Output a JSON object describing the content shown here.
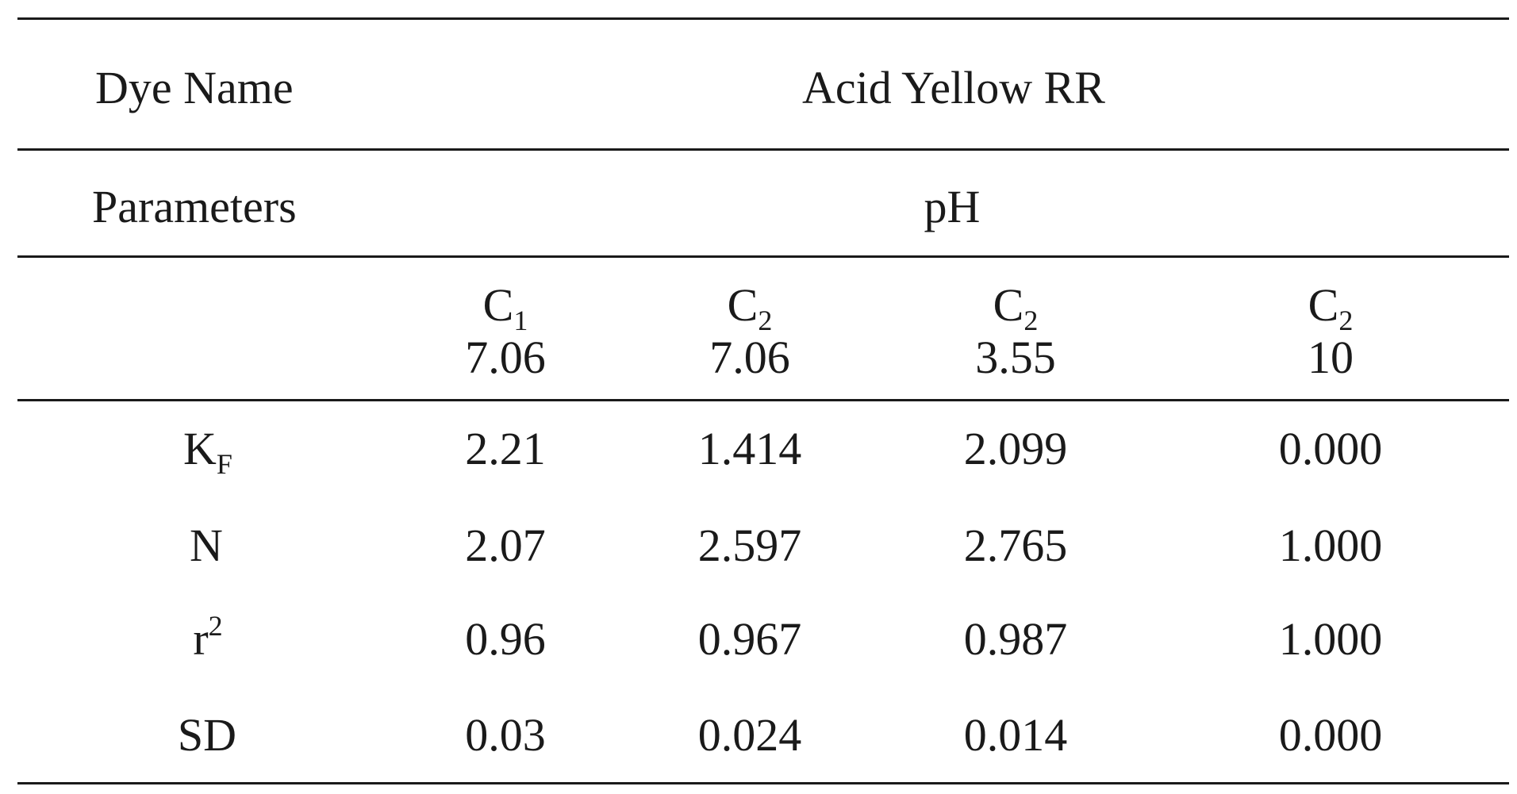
{
  "table": {
    "dye_name_label": "Dye Name",
    "dye_name_value": "Acid Yellow RR",
    "parameters_label": "Parameters",
    "parameters_value": "pH",
    "columns": [
      {
        "label": "C",
        "sub": "1",
        "value": "7.06"
      },
      {
        "label": "C",
        "sub": "2",
        "value": "7.06"
      },
      {
        "label": "C",
        "sub": "2",
        "value": "3.55"
      },
      {
        "label": "C",
        "sub": "2",
        "value": "10"
      }
    ],
    "rows": [
      {
        "label": "K",
        "sub": "F",
        "sup": "",
        "values": [
          "2.21",
          "1.414",
          "2.099",
          "0.000"
        ]
      },
      {
        "label": "N",
        "sub": "",
        "sup": "",
        "values": [
          "2.07",
          "2.597",
          "2.765",
          "1.000"
        ]
      },
      {
        "label": "r",
        "sub": "",
        "sup": "2",
        "values": [
          "0.96",
          "0.967",
          "0.987",
          "1.000"
        ]
      },
      {
        "label": "SD",
        "sub": "",
        "sup": "",
        "values": [
          "0.03",
          "0.024",
          "0.014",
          "0.000"
        ]
      }
    ]
  }
}
